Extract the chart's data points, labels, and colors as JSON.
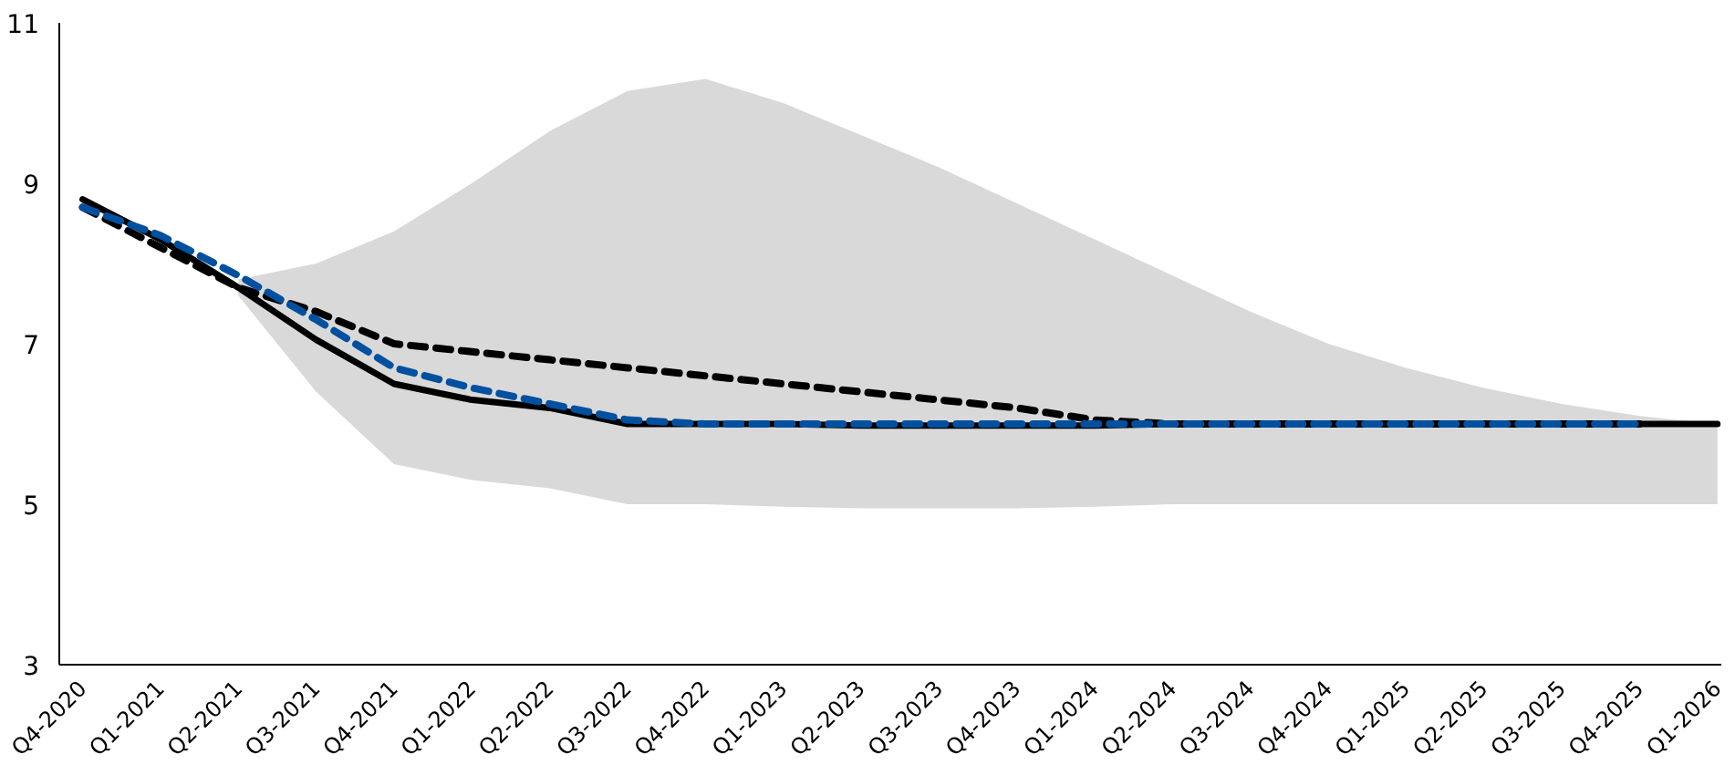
{
  "chart_data": {
    "type": "line",
    "categories": [
      "Q4-2020",
      "Q1-2021",
      "Q2-2021",
      "Q3-2021",
      "Q4-2021",
      "Q1-2022",
      "Q2-2022",
      "Q3-2022",
      "Q4-2022",
      "Q1-2023",
      "Q2-2023",
      "Q3-2023",
      "Q4-2023",
      "Q1-2024",
      "Q2-2024",
      "Q3-2024",
      "Q4-2024",
      "Q1-2025",
      "Q2-2025",
      "Q3-2025",
      "Q4-2025",
      "Q1-2026"
    ],
    "series": [
      {
        "color": "#000000",
        "line_style": "solid",
        "values": [
          8.8,
          8.3,
          7.7,
          7.05,
          6.5,
          6.3,
          6.2,
          6.0,
          6.0,
          6.0,
          5.98,
          5.98,
          5.98,
          5.98,
          6.0,
          6.0,
          6.0,
          6.0,
          6.0,
          6.0,
          6.0,
          6.0
        ],
        "lower": [
          null,
          null,
          7.6,
          6.4,
          5.5,
          5.3,
          5.2,
          5.0,
          5.0,
          4.97,
          4.95,
          4.95,
          4.95,
          4.97,
          5.0,
          5.0,
          5.0,
          5.0,
          5.0,
          5.0,
          5.0,
          5.0
        ],
        "upper": [
          null,
          null,
          7.8,
          8.0,
          8.4,
          9.0,
          9.65,
          10.15,
          10.3,
          10.0,
          9.6,
          9.2,
          8.75,
          8.3,
          7.85,
          7.4,
          7.0,
          6.7,
          6.45,
          6.25,
          6.1,
          6.0
        ]
      },
      {
        "color": "#000000",
        "line_style": "dashed",
        "values": [
          8.7,
          8.2,
          7.7,
          7.4,
          7.0,
          6.9,
          6.8,
          6.7,
          6.6,
          6.5,
          6.4,
          6.3,
          6.2,
          6.05,
          6.0,
          6.0,
          6.0,
          6.0,
          6.0,
          6.0,
          6.0,
          null
        ]
      },
      {
        "color": "#0050a0",
        "line_style": "dashed",
        "values": [
          8.7,
          8.35,
          7.85,
          7.3,
          6.7,
          6.45,
          6.25,
          6.05,
          6.0,
          6.0,
          6.0,
          6.0,
          6.0,
          6.0,
          6.0,
          6.0,
          6.0,
          6.0,
          6.0,
          6.0,
          6.0,
          null
        ]
      }
    ],
    "ylim": [
      3,
      11
    ],
    "yticks": [
      3,
      5,
      7,
      9,
      11
    ],
    "grid": false,
    "marker": "none"
  }
}
